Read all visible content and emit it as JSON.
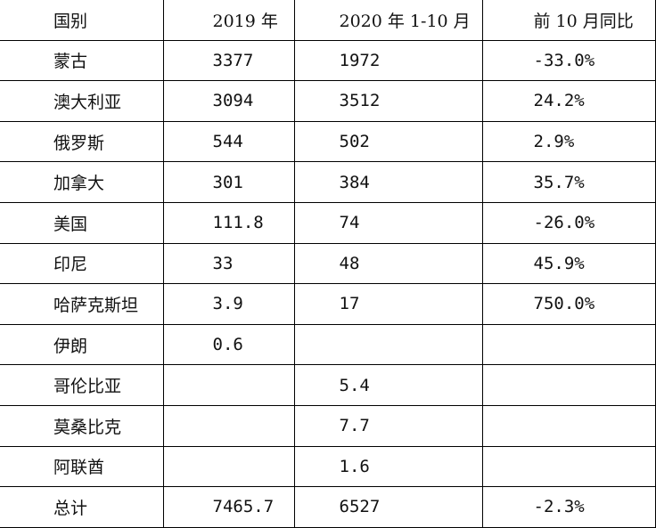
{
  "table": {
    "header": [
      "国别",
      "2019 年",
      "2020 年 1-10 月",
      "前 10 月同比"
    ],
    "rows": [
      [
        "蒙古",
        "3377",
        "1972",
        "-33.0%"
      ],
      [
        "澳大利亚",
        "3094",
        "3512",
        "24.2%"
      ],
      [
        "俄罗斯",
        "544",
        "502",
        "2.9%"
      ],
      [
        "加拿大",
        "301",
        "384",
        "35.7%"
      ],
      [
        "美国",
        "111.8",
        "74",
        "-26.0%"
      ],
      [
        "印尼",
        "33",
        "48",
        "45.9%"
      ],
      [
        "哈萨克斯坦",
        "3.9",
        "17",
        "750.0%"
      ],
      [
        "伊朗",
        "0.6",
        null,
        null
      ],
      [
        "哥伦比亚",
        null,
        "5.4",
        null
      ],
      [
        "莫桑比克",
        null,
        "7.7",
        null
      ],
      [
        "阿联酋",
        null,
        "1.6",
        null
      ],
      [
        "总计",
        "7465.7",
        "6527",
        "-2.3%"
      ]
    ]
  }
}
